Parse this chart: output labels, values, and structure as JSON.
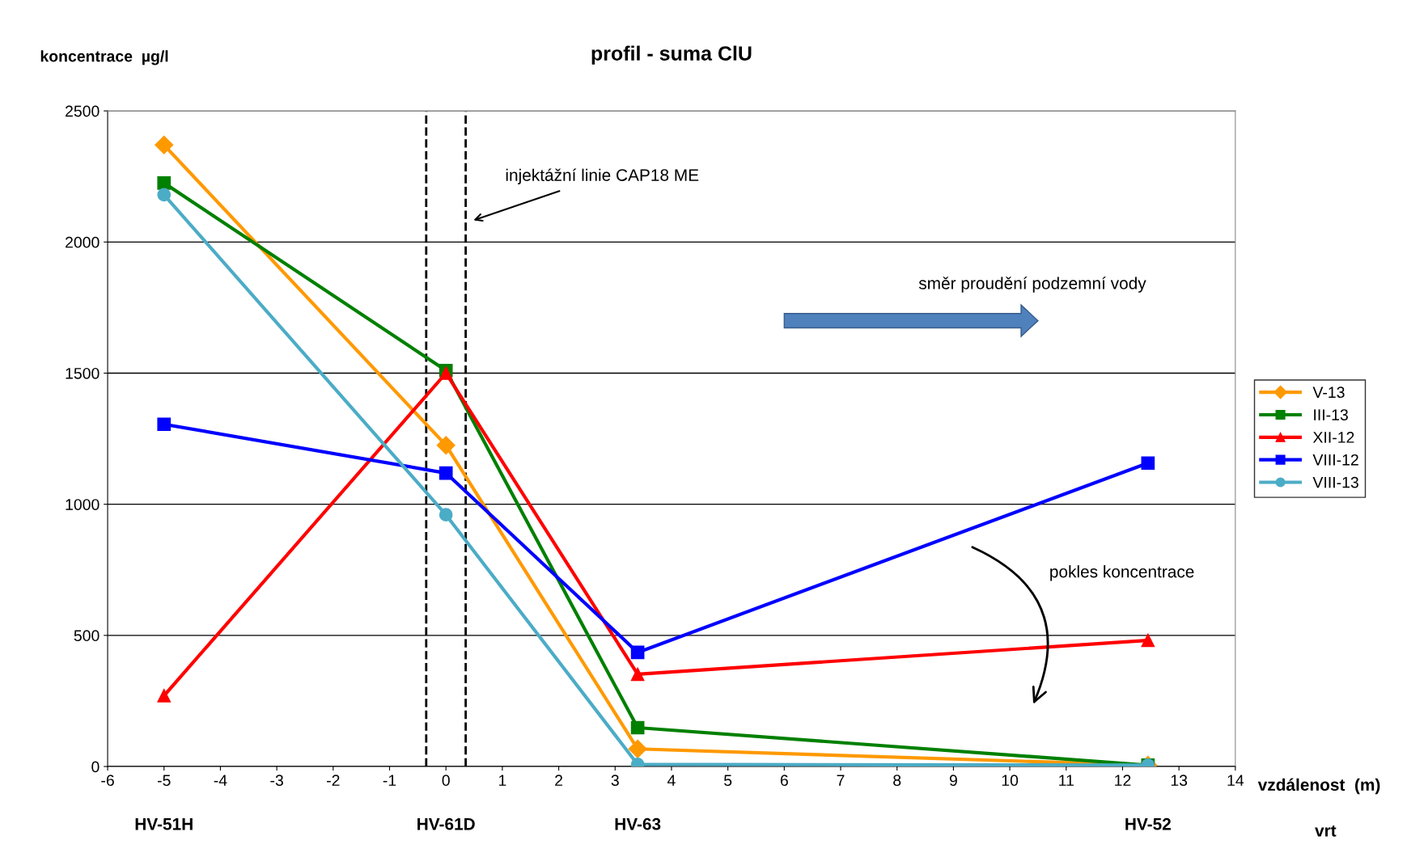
{
  "chart_data": {
    "type": "line",
    "title": "profil - suma ClU",
    "ylabel": "koncentrace  µg/l",
    "xlabel": "vzdálenost  (m)",
    "x": [
      -5,
      0,
      3.4,
      12.45
    ],
    "series": [
      {
        "name": "V-13",
        "color": "#ff9900",
        "marker": "diamond",
        "values": [
          2370,
          1225,
          67,
          5
        ]
      },
      {
        "name": "III-13",
        "color": "#008000",
        "marker": "square",
        "values": [
          2225,
          1510,
          148,
          5
        ]
      },
      {
        "name": "XII-12",
        "color": "#ff0000",
        "marker": "triangle",
        "values": [
          270,
          1500,
          352,
          481
        ]
      },
      {
        "name": "VIII-12",
        "color": "#0000ff",
        "marker": "square",
        "values": [
          1305,
          1119,
          435,
          1157
        ]
      },
      {
        "name": "VIII-13",
        "color": "#4bacc6",
        "marker": "circle",
        "values": [
          2180,
          960,
          8,
          5
        ]
      }
    ],
    "xlim": [
      -6,
      14
    ],
    "xticks": [
      -6,
      -5,
      -4,
      -3,
      -2,
      -1,
      0,
      1,
      2,
      3,
      4,
      5,
      6,
      7,
      8,
      9,
      10,
      11,
      12,
      13,
      14
    ],
    "ylim": [
      0,
      2500
    ],
    "yticks": [
      0,
      500,
      1000,
      1500,
      2000,
      2500
    ],
    "ref_lines": [
      {
        "axis": "x",
        "value": 0.35,
        "label": "injektážní linie CAP18 ME",
        "color": "#000000",
        "line_style": "dashed"
      },
      {
        "axis": "x",
        "value": -0.35,
        "color": "#000000",
        "line_style": "dashed"
      }
    ],
    "annotations": [
      "směr proudění podzemní vody",
      "pokles koncentrace",
      "vrt",
      "HV-51H",
      "HV-61D",
      "HV-63",
      "HV-52"
    ],
    "grid": "y",
    "legend": "right",
    "line_style": "solid"
  }
}
